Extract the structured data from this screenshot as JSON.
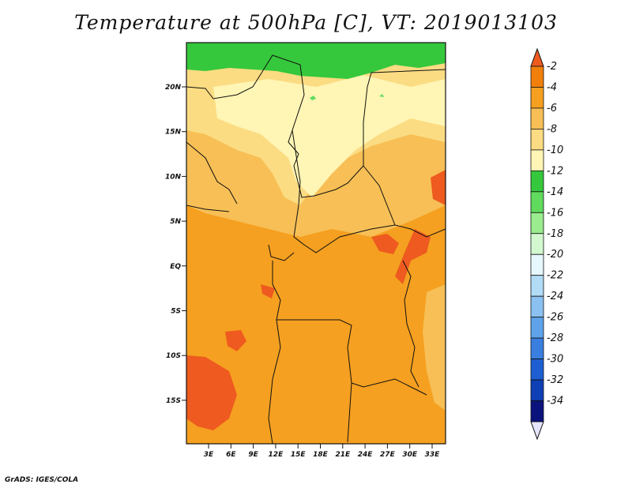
{
  "title": "Temperature at 500hPa [C], VT: 2019013103",
  "credit": "GrADS: IGES/COLA",
  "map": {
    "lat_labels": [
      "20N",
      "15N",
      "10N",
      "5N",
      "EQ",
      "5S",
      "10S",
      "15S"
    ],
    "lon_labels": [
      "3E",
      "6E",
      "9E",
      "12E",
      "15E",
      "18E",
      "21E",
      "24E",
      "27E",
      "30E",
      "33E"
    ]
  },
  "colorbar": {
    "labels": [
      "-2",
      "-4",
      "-6",
      "-8",
      "-10",
      "-12",
      "-14",
      "-16",
      "-18",
      "-20",
      "-22",
      "-24",
      "-26",
      "-28",
      "-30",
      "-32",
      "-34"
    ],
    "colors": [
      "#ee5a1f",
      "#f07f0c",
      "#f5a020",
      "#f7bf55",
      "#fbdc82",
      "#fff5b4",
      "#35c83c",
      "#60db5e",
      "#9aec8e",
      "#d3f8d0",
      "#e7f7fe",
      "#b2dcf6",
      "#8ac1f0",
      "#5ea3ea",
      "#3a7fe0",
      "#1d5fd1",
      "#0f3fb5",
      "#0a137c",
      "#e5e5ff"
    ]
  }
}
